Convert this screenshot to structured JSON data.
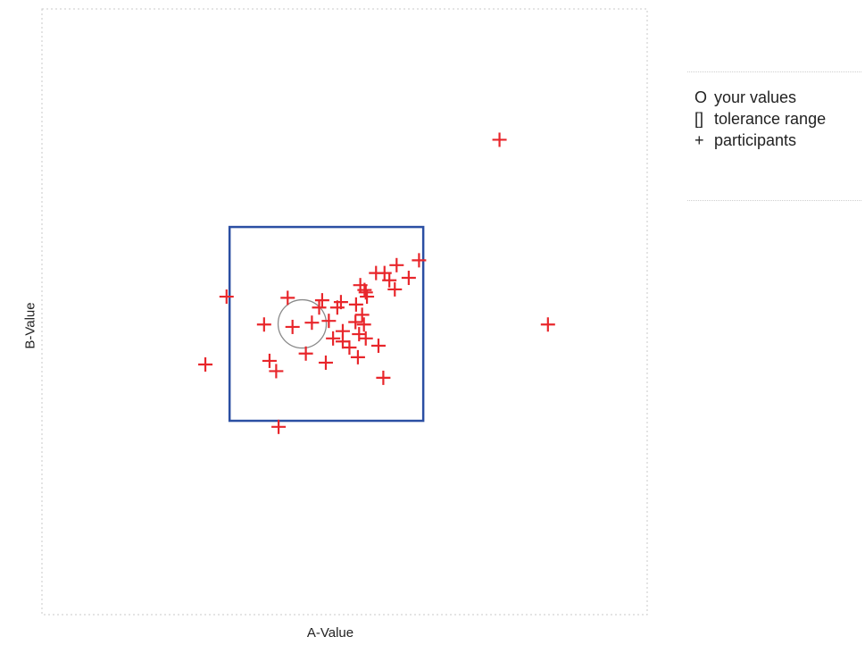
{
  "chart_data": {
    "type": "scatter",
    "xlabel": "A-Value",
    "ylabel": "B-Value",
    "xlim": [
      0,
      100
    ],
    "ylim": [
      0,
      100
    ],
    "grid": false,
    "legend_placement": "right",
    "legend": [
      {
        "symbol": "O",
        "label": "your values"
      },
      {
        "symbol": "[]",
        "label": "tolerance range"
      },
      {
        "symbol": "+",
        "label": "participants"
      }
    ],
    "your_values": {
      "x": 43,
      "y": 48
    },
    "tolerance_range": {
      "x": [
        31,
        63
      ],
      "y": [
        32,
        64
      ]
    },
    "participants": {
      "x": [
        75.6,
        83.6,
        62.3,
        30.5,
        27,
        39.1,
        37.6,
        36.7,
        40.6,
        41.4,
        44.6,
        45.8,
        46.3,
        47.4,
        48.8,
        49.4,
        51.9,
        53.7,
        52.6,
        53.5,
        53.3,
        52.9,
        51.8,
        53.2,
        55.2,
        56.6,
        58.6,
        60.6,
        57.4,
        58.3,
        48.1,
        49.7,
        50.8,
        49.7,
        52.4,
        53.5,
        55.6,
        43.6,
        38.7,
        46.9,
        52.2,
        56.4
      ],
      "y": [
        78.4,
        47.9,
        58.5,
        52.5,
        41.3,
        31,
        41.9,
        47.9,
        52.3,
        47.5,
        48.2,
        50.7,
        51.9,
        48.5,
        50.7,
        51.6,
        51.2,
        52.5,
        54.4,
        53.2,
        53.6,
        49.5,
        48.3,
        47.9,
        56.4,
        56.4,
        57.7,
        55.6,
        55.2,
        53.7,
        45.6,
        46.8,
        44.1,
        45.1,
        46.3,
        45.6,
        44.4,
        43.1,
        40.2,
        41.6,
        42.5,
        39.1
      ]
    }
  },
  "colors": {
    "participants": "#e8262b",
    "tolerance": "#2b4fa3",
    "your_values": "#8a8a8a",
    "frame": "#c8c8c8"
  }
}
